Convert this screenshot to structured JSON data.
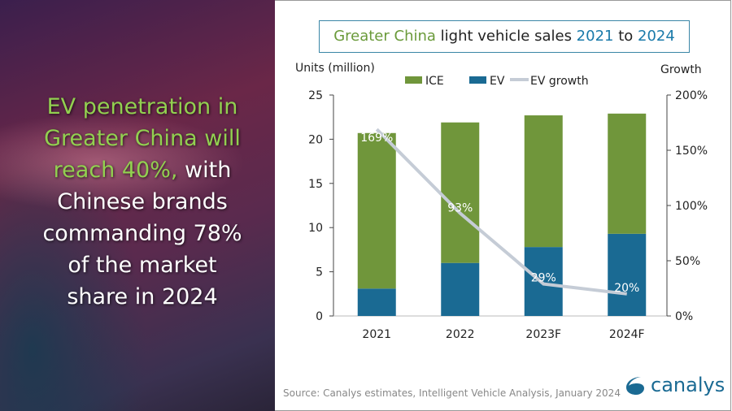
{
  "headline": {
    "lines": [
      [
        {
          "t": "EV penetration in",
          "g": true
        }
      ],
      [
        {
          "t": "Greater China will",
          "g": true
        }
      ],
      [
        {
          "t": "reach 40%,",
          "g": true
        },
        {
          "t": " with",
          "g": false
        }
      ],
      [
        {
          "t": "Chinese brands",
          "g": false
        }
      ],
      [
        {
          "t": "commanding 78%",
          "g": false
        }
      ],
      [
        {
          "t": "of the market",
          "g": false
        }
      ],
      [
        {
          "t": "share in 2024",
          "g": false
        }
      ]
    ]
  },
  "title": {
    "p1": "Greater China",
    "p2": " light vehicle sales ",
    "p3": "2021",
    "p4": " to ",
    "p5": "2024"
  },
  "source": "Source: Canalys estimates, Intelligent Vehicle Analysis, January 2024",
  "logo": "canalys",
  "colors": {
    "ice": "#70963b",
    "ev": "#1a6a93",
    "growth": "#c5ccd6",
    "accent_green": "#92d050"
  },
  "chart_data": {
    "type": "bar",
    "stacked": true,
    "categories": [
      "2021",
      "2022",
      "2023F",
      "2024F"
    ],
    "series": [
      {
        "name": "ICE",
        "values": [
          17.6,
          15.9,
          14.9,
          13.6
        ]
      },
      {
        "name": "EV",
        "values": [
          3.1,
          6.0,
          7.8,
          9.3
        ]
      }
    ],
    "line_series": {
      "name": "EV growth",
      "values": [
        169,
        93,
        29,
        20
      ],
      "labels": [
        "169%",
        "93%",
        "29%",
        "20%"
      ],
      "axis": "right"
    },
    "ylabel": "Units (million)",
    "y2label": "Growth",
    "ylim": [
      0,
      25
    ],
    "yticks": [
      "0",
      "5",
      "10",
      "15",
      "20",
      "25"
    ],
    "y2lim": [
      0,
      200
    ],
    "y2ticks": [
      "0%",
      "50%",
      "100%",
      "150%",
      "200%"
    ],
    "legend": "top",
    "grid": false
  }
}
